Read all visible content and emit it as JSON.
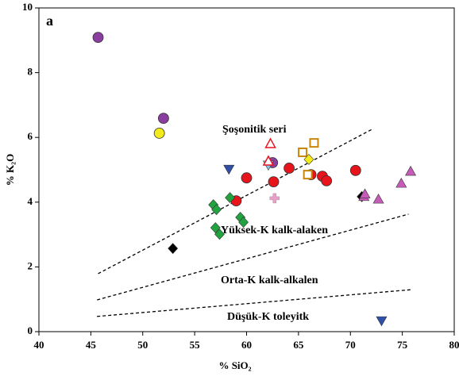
{
  "chart_data": {
    "type": "scatter",
    "panel_label": "a",
    "xlabel": "% SiO₂",
    "ylabel": "% K₂O",
    "xlim": [
      40,
      80
    ],
    "ylim": [
      0,
      10
    ],
    "xticks": [
      40,
      45,
      50,
      55,
      60,
      65,
      70,
      75,
      80
    ],
    "yticks": [
      0,
      2,
      4,
      6,
      8,
      10
    ],
    "annotations": [
      "Şoşonitik seri",
      "Yüksek-K kalk-alaken",
      "Orta-K kalk-alkalen",
      "Düşük-K toleyitk"
    ],
    "lines": [
      {
        "x": [
          45.7,
          72.2
        ],
        "values": [
          1.79,
          6.27
        ],
        "dash": true
      },
      {
        "x": [
          45.6,
          75.6
        ],
        "values": [
          0.98,
          3.63
        ],
        "dash": true
      },
      {
        "x": [
          45.6,
          76.0
        ],
        "values": [
          0.47,
          1.3
        ],
        "dash": true
      }
    ],
    "series": [
      {
        "marker": "circle",
        "color": "#8a3fa0",
        "x": [
          45.7,
          52.0,
          62.5
        ],
        "values": [
          9.09,
          6.59,
          5.22
        ]
      },
      {
        "marker": "circle",
        "color": "#f2ea1a",
        "x": [
          51.6
        ],
        "values": [
          6.13
        ]
      },
      {
        "marker": "circle",
        "color": "#e8141c",
        "x": [
          59.0,
          60.0,
          62.6,
          64.1,
          66.2,
          67.3,
          67.7,
          70.5
        ],
        "values": [
          4.04,
          4.75,
          4.63,
          5.05,
          4.85,
          4.8,
          4.66,
          4.98
        ]
      },
      {
        "marker": "diamond",
        "color": "#22a340",
        "x": [
          56.8,
          57.1,
          58.4,
          57.0,
          57.4,
          59.4,
          59.7
        ],
        "values": [
          3.92,
          3.77,
          4.14,
          3.21,
          3.01,
          3.53,
          3.38
        ]
      },
      {
        "marker": "diamond",
        "color": "#000000",
        "x": [
          52.9,
          71.1
        ],
        "values": [
          2.57,
          4.17
        ]
      },
      {
        "marker": "triangle-down",
        "color": "#2f4fa8",
        "x": [
          58.3,
          73.0
        ],
        "values": [
          5.02,
          0.34
        ]
      },
      {
        "marker": "triangle-down",
        "color": "#7ec8e8",
        "x": [
          62.1
        ],
        "values": [
          5.15
        ]
      },
      {
        "marker": "triangle-up",
        "color": "#c65bb8",
        "x": [
          71.3,
          71.4,
          72.7,
          74.9,
          75.8
        ],
        "values": [
          4.17,
          4.25,
          4.09,
          4.58,
          4.95
        ]
      },
      {
        "marker": "triangle-open",
        "color": "#e8141c",
        "x": [
          62.3,
          62.1
        ],
        "values": [
          5.81,
          5.27
        ]
      },
      {
        "marker": "square-open",
        "color": "#c8860a",
        "x": [
          65.4,
          66.5,
          65.9
        ],
        "values": [
          5.54,
          5.83,
          4.85
        ]
      },
      {
        "marker": "diamond",
        "color": "#f2ea1a",
        "x": [
          66.0
        ],
        "values": [
          5.32
        ]
      },
      {
        "marker": "cross",
        "color": "#e8a0c8",
        "x": [
          62.7
        ],
        "values": [
          4.12
        ]
      }
    ]
  }
}
